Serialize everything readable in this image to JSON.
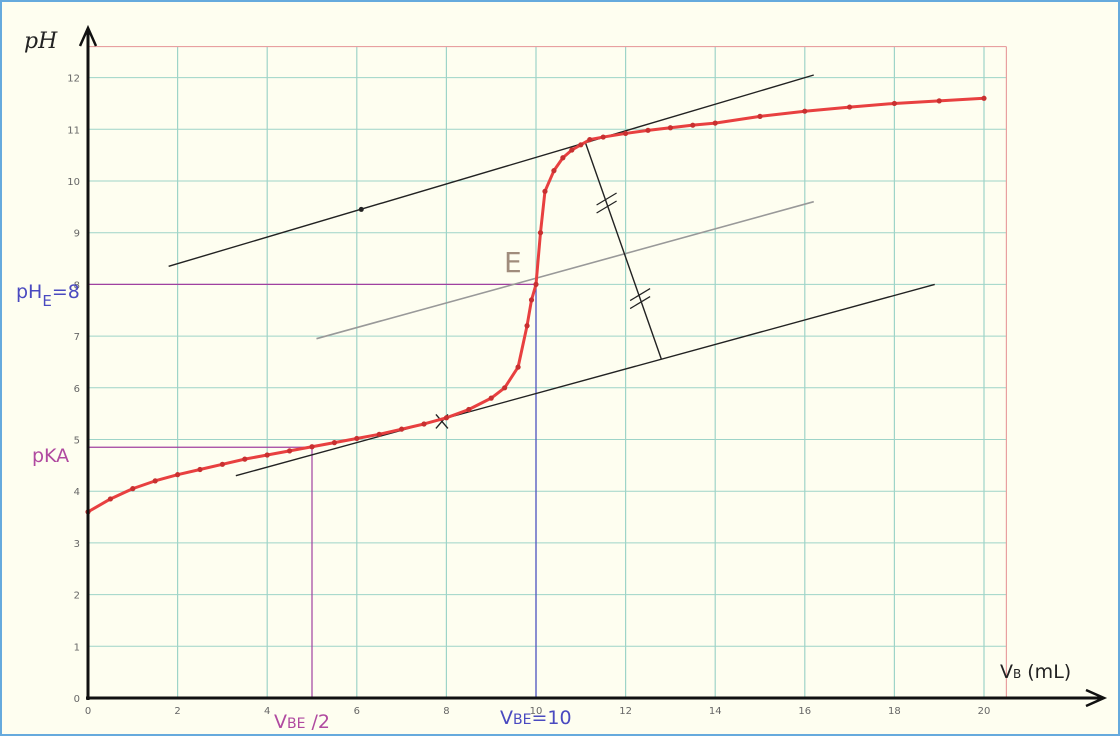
{
  "chart_data": {
    "type": "line",
    "title": "",
    "ylabel": "pH",
    "xlabel_main": "V",
    "xlabel_sub": "B",
    "xlabel_unit": " (mL)",
    "xlim": [
      0,
      20
    ],
    "ylim": [
      0,
      12
    ],
    "grid": true,
    "x_ticks": [
      "0",
      "2",
      "4",
      "6",
      "8",
      "10",
      "12",
      "14",
      "16",
      "18",
      "20"
    ],
    "y_ticks": [
      "0",
      "1",
      "2",
      "3",
      "4",
      "5",
      "6",
      "7",
      "8",
      "9",
      "10",
      "11",
      "12"
    ],
    "series": [
      {
        "color": "#e84040",
        "x": [
          0,
          0.5,
          1,
          1.5,
          2,
          2.5,
          3,
          3.5,
          4,
          4.5,
          5,
          5.5,
          6,
          6.5,
          7,
          7.5,
          8,
          8.5,
          9,
          9.3,
          9.6,
          9.8,
          9.9,
          10,
          10.1,
          10.2,
          10.4,
          10.6,
          10.8,
          11,
          11.2,
          11.5,
          12,
          12.5,
          13,
          13.5,
          14,
          15,
          16,
          17,
          18,
          19,
          20
        ],
        "y": [
          3.6,
          3.85,
          4.05,
          4.2,
          4.32,
          4.42,
          4.52,
          4.62,
          4.7,
          4.78,
          4.86,
          4.94,
          5.02,
          5.1,
          5.2,
          5.3,
          5.42,
          5.58,
          5.8,
          6.0,
          6.4,
          7.2,
          7.7,
          8.0,
          9.0,
          9.8,
          10.2,
          10.45,
          10.6,
          10.7,
          10.8,
          10.85,
          10.92,
          10.98,
          11.03,
          11.08,
          11.12,
          11.25,
          11.35,
          11.43,
          11.5,
          11.55,
          11.6
        ]
      }
    ],
    "tangents": [
      {
        "x1": 1.8,
        "y1": 8.35,
        "x2": 16.2,
        "y2": 12.05
      },
      {
        "x1": 3.3,
        "y1": 4.3,
        "x2": 18.9,
        "y2": 8.0
      },
      {
        "x1": 5.1,
        "y1": 6.95,
        "x2": 16.2,
        "y2": 9.6
      }
    ],
    "perpendicular": {
      "x1": 11.1,
      "y1": 10.75,
      "x2": 12.8,
      "y2": 6.55
    },
    "reference_lines": {
      "equivalence_volume": 10,
      "equivalence_ph": 8,
      "half_volume": 5,
      "pka": 4.85
    },
    "annotations": {
      "phe_main": "pH",
      "phe_sub": "E",
      "phe_value": "=8",
      "pka_label": "pKA",
      "half_main": "V",
      "half_sub": "BE",
      "half_value": " /2",
      "ve_main": "V",
      "ve_sub": "BE",
      "ve_value": "=10",
      "point_label": "E"
    },
    "colors": {
      "curve": "#e84040",
      "grid": "#9ed4c8",
      "purple": "#a040a0",
      "blue": "#4a4ac0",
      "tangent": "#222222",
      "midline": "#999999"
    }
  }
}
